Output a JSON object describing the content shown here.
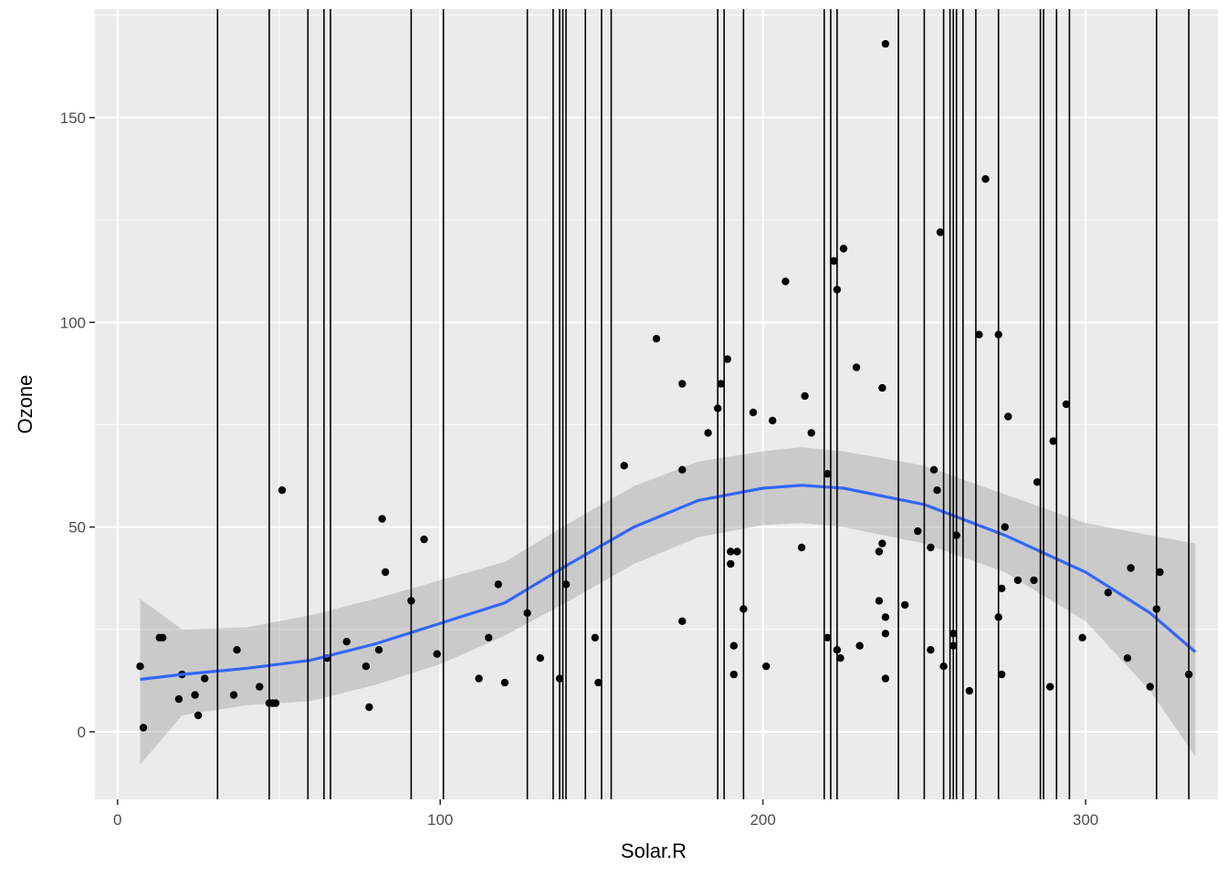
{
  "chart_data": {
    "type": "scatter",
    "title": "",
    "xlabel": "Solar.R",
    "ylabel": "Ozone",
    "xlim": [
      -7,
      341
    ],
    "ylim": [
      -16.5,
      176.5
    ],
    "x_ticks": [
      0,
      100,
      200,
      300
    ],
    "x_tick_labels": [
      "0",
      "100",
      "200",
      "300"
    ],
    "y_ticks": [
      0,
      50,
      100,
      150
    ],
    "y_tick_labels": [
      "0",
      "50",
      "100",
      "150"
    ],
    "grid": true,
    "legend": "none",
    "colors": {
      "panel": "#EBEBEB",
      "grid_major": "#FFFFFF",
      "points": "#000000",
      "vlines": "#000000",
      "smooth_line": "#3366FF",
      "ribbon": "#999999"
    },
    "points": [
      [
        7,
        16
      ],
      [
        8,
        1
      ],
      [
        13,
        23
      ],
      [
        14,
        23
      ],
      [
        19,
        8
      ],
      [
        20,
        14
      ],
      [
        24,
        9
      ],
      [
        25,
        4
      ],
      [
        27,
        13
      ],
      [
        36,
        9
      ],
      [
        37,
        20
      ],
      [
        44,
        11
      ],
      [
        47,
        7
      ],
      [
        48,
        7
      ],
      [
        49,
        7
      ],
      [
        51,
        59
      ],
      [
        65,
        18
      ],
      [
        71,
        22
      ],
      [
        77,
        16
      ],
      [
        78,
        6
      ],
      [
        81,
        20
      ],
      [
        82,
        52
      ],
      [
        83,
        39
      ],
      [
        91,
        32
      ],
      [
        95,
        47
      ],
      [
        99,
        19
      ],
      [
        112,
        13
      ],
      [
        115,
        23
      ],
      [
        118,
        36
      ],
      [
        120,
        12
      ],
      [
        127,
        29
      ],
      [
        131,
        18
      ],
      [
        137,
        13
      ],
      [
        139,
        36
      ],
      [
        148,
        23
      ],
      [
        149,
        12
      ],
      [
        157,
        65
      ],
      [
        167,
        96
      ],
      [
        175,
        64
      ],
      [
        175,
        27
      ],
      [
        175,
        85
      ],
      [
        183,
        73
      ],
      [
        186,
        79
      ],
      [
        187,
        85
      ],
      [
        189,
        91
      ],
      [
        190,
        41
      ],
      [
        190,
        44
      ],
      [
        191,
        21
      ],
      [
        191,
        14
      ],
      [
        192,
        44
      ],
      [
        194,
        30
      ],
      [
        197,
        78
      ],
      [
        201,
        16
      ],
      [
        203,
        76
      ],
      [
        207,
        110
      ],
      [
        212,
        45
      ],
      [
        213,
        82
      ],
      [
        215,
        73
      ],
      [
        220,
        63
      ],
      [
        220,
        23
      ],
      [
        222,
        115
      ],
      [
        223,
        108
      ],
      [
        223,
        20
      ],
      [
        224,
        18
      ],
      [
        225,
        118
      ],
      [
        229,
        89
      ],
      [
        230,
        21
      ],
      [
        236,
        32
      ],
      [
        236,
        44
      ],
      [
        237,
        84
      ],
      [
        237,
        46
      ],
      [
        238,
        168
      ],
      [
        238,
        28
      ],
      [
        238,
        24
      ],
      [
        238,
        13
      ],
      [
        244,
        31
      ],
      [
        248,
        49
      ],
      [
        252,
        20
      ],
      [
        252,
        45
      ],
      [
        253,
        64
      ],
      [
        254,
        59
      ],
      [
        255,
        122
      ],
      [
        256,
        16
      ],
      [
        259,
        24
      ],
      [
        259,
        21
      ],
      [
        260,
        48
      ],
      [
        264,
        10
      ],
      [
        267,
        97
      ],
      [
        269,
        135
      ],
      [
        273,
        97
      ],
      [
        273,
        28
      ],
      [
        274,
        35
      ],
      [
        274,
        14
      ],
      [
        275,
        50
      ],
      [
        276,
        77
      ],
      [
        279,
        37
      ],
      [
        284,
        37
      ],
      [
        285,
        61
      ],
      [
        289,
        11
      ],
      [
        290,
        71
      ],
      [
        294,
        80
      ],
      [
        299,
        23
      ],
      [
        307,
        34
      ],
      [
        313,
        18
      ],
      [
        314,
        40
      ],
      [
        320,
        11
      ],
      [
        322,
        30
      ],
      [
        323,
        39
      ],
      [
        332,
        14
      ]
    ],
    "vlines": [
      31,
      47,
      59,
      64,
      66,
      91,
      101,
      127,
      135,
      137,
      138,
      139,
      145,
      150,
      153,
      186,
      188,
      194,
      219,
      221,
      223,
      242,
      250,
      256,
      258,
      259,
      260,
      262,
      266,
      273,
      286,
      287,
      291,
      295,
      322,
      332
    ],
    "smooth": {
      "method": "loess",
      "x": [
        7,
        20,
        40,
        60,
        80,
        100,
        120,
        140,
        160,
        180,
        200,
        212,
        225,
        250,
        275,
        300,
        320,
        334
      ],
      "y": [
        12.8,
        14,
        15.5,
        17.5,
        21.5,
        26.5,
        31.5,
        41,
        50,
        56.5,
        59.5,
        60.2,
        59.5,
        55.5,
        48,
        39,
        29,
        19.5
      ],
      "lower": [
        -8,
        4,
        6.5,
        7.5,
        11.5,
        16.5,
        23.5,
        32,
        41,
        47.5,
        50.5,
        51,
        50,
        46,
        39,
        27,
        10,
        -6
      ],
      "upper": [
        32.5,
        25,
        25.5,
        28.5,
        32.5,
        37,
        41.5,
        51,
        60,
        66,
        68.5,
        69.5,
        68.5,
        65,
        58,
        51,
        48,
        46
      ]
    }
  }
}
